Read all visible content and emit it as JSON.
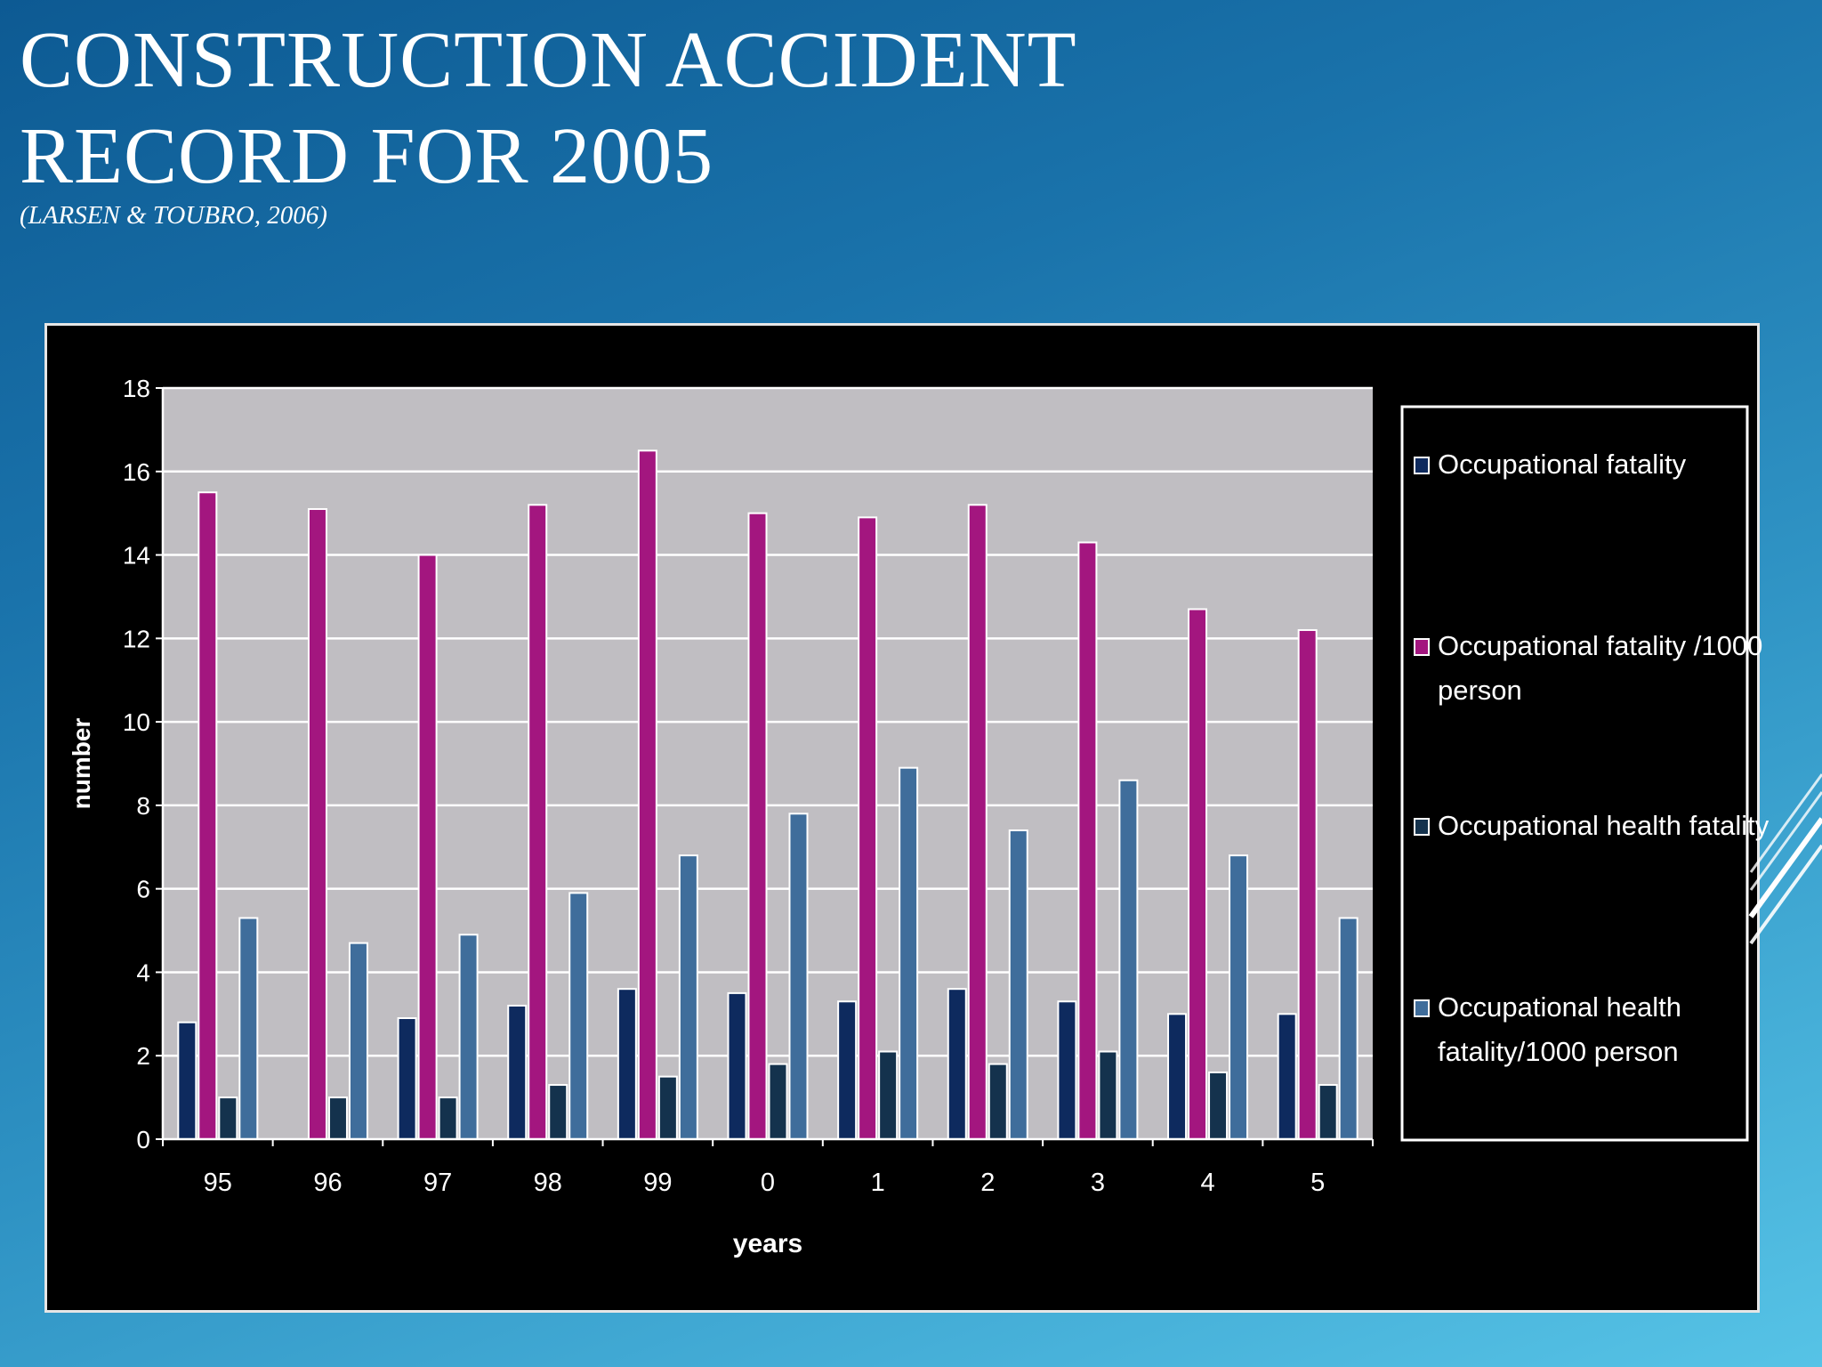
{
  "slide": {
    "title_line1": "CONSTRUCTION ACCIDENT",
    "title_line2": "RECORD FOR 2005",
    "subtitle": "(LARSEN & TOUBRO, 2006)"
  },
  "colors": {
    "plot_background": "#c0bec2",
    "panel_background": "#000000",
    "series": [
      "#0e2a5e",
      "#a3167f",
      "#14324d",
      "#3f6d9b"
    ]
  },
  "chart_data": {
    "type": "bar",
    "title": "",
    "xlabel": "years",
    "ylabel": "number",
    "ylim": [
      0,
      18
    ],
    "yticks": [
      0,
      2,
      4,
      6,
      8,
      10,
      12,
      14,
      16,
      18
    ],
    "grid": true,
    "legend_position": "right",
    "categories": [
      "95",
      "96",
      "97",
      "98",
      "99",
      "0",
      "1",
      "2",
      "3",
      "4",
      "5"
    ],
    "series": [
      {
        "name": "Occupational fatality",
        "values": [
          2.8,
          null,
          2.9,
          3.2,
          3.6,
          3.5,
          3.3,
          3.6,
          3.3,
          3.0,
          3.0
        ]
      },
      {
        "name": "Occupational fatality /1000 person",
        "values": [
          15.5,
          15.1,
          14.0,
          15.2,
          16.5,
          15.0,
          14.9,
          15.2,
          14.3,
          12.7,
          12.2
        ]
      },
      {
        "name": "Occupational health fatality",
        "values": [
          1.0,
          1.0,
          1.0,
          1.3,
          1.5,
          1.8,
          2.1,
          1.8,
          2.1,
          1.6,
          1.3
        ]
      },
      {
        "name": "Occupational health fatality/1000 person",
        "values": [
          5.3,
          4.7,
          4.9,
          5.9,
          6.8,
          7.8,
          8.9,
          7.4,
          8.6,
          6.8,
          5.3
        ]
      }
    ]
  }
}
